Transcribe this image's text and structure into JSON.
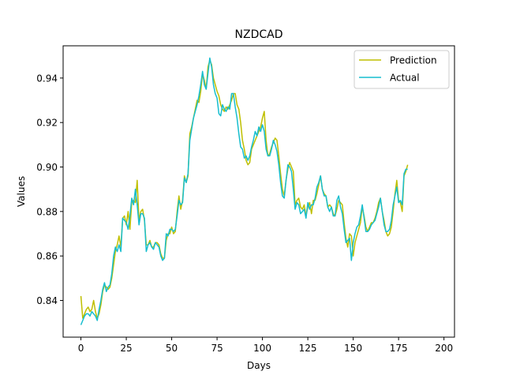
{
  "chart_data": {
    "type": "line",
    "title": "NZDCAD",
    "xlabel": "Days",
    "ylabel": "Values",
    "xlim": [
      -9.8,
      205.8
    ],
    "ylim": [
      0.8235,
      0.9545
    ],
    "xticks": [
      0,
      25,
      50,
      75,
      100,
      125,
      150,
      175,
      200
    ],
    "yticks": [
      0.84,
      0.86,
      0.88,
      0.9,
      0.92,
      0.94
    ],
    "ytick_labels": [
      "0.84",
      "0.86",
      "0.88",
      "0.90",
      "0.92",
      "0.94"
    ],
    "grid": false,
    "legend_position": "top-right",
    "series": [
      {
        "name": "Prediction",
        "color": "#bfbf00",
        "x_start": 0,
        "values": [
          0.842,
          0.832,
          0.834,
          0.836,
          0.837,
          0.835,
          0.836,
          0.84,
          0.835,
          0.832,
          0.834,
          0.838,
          0.844,
          0.847,
          0.846,
          0.845,
          0.846,
          0.85,
          0.856,
          0.862,
          0.865,
          0.869,
          0.864,
          0.877,
          0.878,
          0.874,
          0.88,
          0.872,
          0.884,
          0.885,
          0.884,
          0.894,
          0.876,
          0.88,
          0.881,
          0.876,
          0.865,
          0.865,
          0.867,
          0.864,
          0.864,
          0.866,
          0.866,
          0.865,
          0.861,
          0.859,
          0.859,
          0.867,
          0.87,
          0.87,
          0.873,
          0.87,
          0.871,
          0.88,
          0.887,
          0.881,
          0.885,
          0.896,
          0.893,
          0.896,
          0.915,
          0.918,
          0.922,
          0.926,
          0.93,
          0.929,
          0.934,
          0.942,
          0.939,
          0.935,
          0.945,
          0.948,
          0.946,
          0.94,
          0.937,
          0.934,
          0.932,
          0.928,
          0.926,
          0.925,
          0.927,
          0.926,
          0.928,
          0.93,
          0.933,
          0.933,
          0.928,
          0.926,
          0.92,
          0.912,
          0.908,
          0.903,
          0.901,
          0.902,
          0.908,
          0.91,
          0.912,
          0.914,
          0.916,
          0.918,
          0.922,
          0.925,
          0.912,
          0.905,
          0.906,
          0.909,
          0.911,
          0.913,
          0.912,
          0.905,
          0.897,
          0.89,
          0.887,
          0.894,
          0.899,
          0.902,
          0.9,
          0.898,
          0.883,
          0.885,
          0.886,
          0.882,
          0.881,
          0.883,
          0.878,
          0.882,
          0.884,
          0.879,
          0.885,
          0.885,
          0.888,
          0.892,
          0.896,
          0.89,
          0.888,
          0.887,
          0.882,
          0.883,
          0.882,
          0.879,
          0.878,
          0.881,
          0.885,
          0.884,
          0.883,
          0.875,
          0.868,
          0.864,
          0.87,
          0.869,
          0.86,
          0.866,
          0.869,
          0.872,
          0.875,
          0.882,
          0.878,
          0.873,
          0.871,
          0.873,
          0.875,
          0.875,
          0.877,
          0.88,
          0.884,
          0.886,
          0.88,
          0.876,
          0.871,
          0.869,
          0.87,
          0.873,
          0.88,
          0.888,
          0.894,
          0.885,
          0.884,
          0.88,
          0.896,
          0.898,
          0.901
        ]
      },
      {
        "name": "Actual",
        "color": "#17becf",
        "x_start": 0,
        "values": [
          0.829,
          0.831,
          0.833,
          0.834,
          0.834,
          0.833,
          0.835,
          0.834,
          0.833,
          0.831,
          0.836,
          0.84,
          0.845,
          0.848,
          0.844,
          0.846,
          0.847,
          0.852,
          0.86,
          0.864,
          0.862,
          0.865,
          0.862,
          0.877,
          0.876,
          0.875,
          0.872,
          0.878,
          0.886,
          0.883,
          0.89,
          0.883,
          0.874,
          0.879,
          0.879,
          0.877,
          0.862,
          0.865,
          0.866,
          0.864,
          0.863,
          0.866,
          0.865,
          0.864,
          0.86,
          0.858,
          0.859,
          0.87,
          0.869,
          0.872,
          0.872,
          0.871,
          0.872,
          0.878,
          0.885,
          0.883,
          0.884,
          0.895,
          0.893,
          0.897,
          0.912,
          0.917,
          0.922,
          0.925,
          0.928,
          0.932,
          0.937,
          0.943,
          0.937,
          0.935,
          0.942,
          0.949,
          0.945,
          0.937,
          0.933,
          0.931,
          0.924,
          0.923,
          0.928,
          0.926,
          0.925,
          0.927,
          0.926,
          0.933,
          0.933,
          0.927,
          0.922,
          0.915,
          0.909,
          0.908,
          0.904,
          0.905,
          0.903,
          0.905,
          0.909,
          0.912,
          0.916,
          0.914,
          0.918,
          0.916,
          0.919,
          0.916,
          0.908,
          0.905,
          0.905,
          0.908,
          0.912,
          0.91,
          0.907,
          0.901,
          0.893,
          0.887,
          0.886,
          0.894,
          0.901,
          0.9,
          0.898,
          0.89,
          0.881,
          0.884,
          0.883,
          0.879,
          0.88,
          0.881,
          0.877,
          0.884,
          0.881,
          0.883,
          0.883,
          0.886,
          0.891,
          0.893,
          0.896,
          0.89,
          0.887,
          0.887,
          0.882,
          0.88,
          0.882,
          0.878,
          0.878,
          0.885,
          0.887,
          0.882,
          0.879,
          0.872,
          0.866,
          0.867,
          0.868,
          0.858,
          0.866,
          0.87,
          0.873,
          0.874,
          0.878,
          0.883,
          0.877,
          0.871,
          0.871,
          0.872,
          0.874,
          0.875,
          0.876,
          0.879,
          0.882,
          0.886,
          0.88,
          0.874,
          0.871,
          0.871,
          0.872,
          0.876,
          0.883,
          0.887,
          0.891,
          0.884,
          0.885,
          0.883,
          0.897,
          0.899,
          0.899
        ]
      }
    ]
  }
}
